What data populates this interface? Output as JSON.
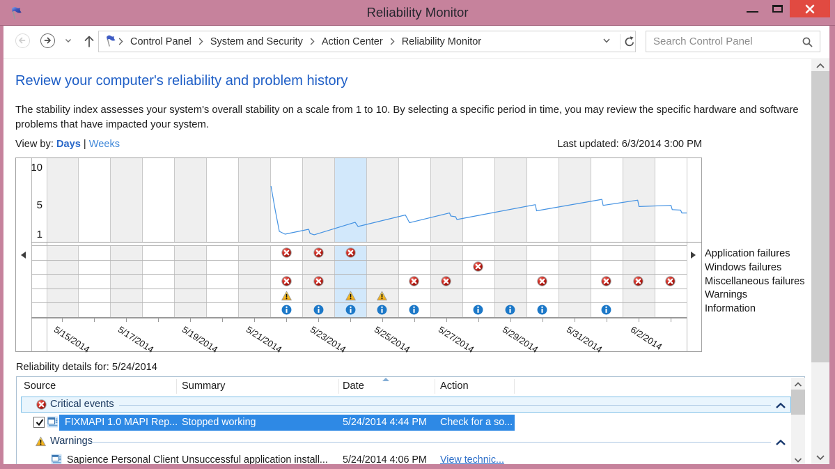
{
  "window": {
    "title": "Reliability Monitor"
  },
  "toolbar": {
    "breadcrumb": [
      "Control Panel",
      "System and Security",
      "Action Center",
      "Reliability Monitor"
    ],
    "search_placeholder": "Search Control Panel"
  },
  "page": {
    "heading": "Review your computer's reliability and problem history",
    "intro_line1": "The stability index assesses your system's overall stability on a scale from 1 to 10. By selecting a specific period in time, you may review the specific hardware and software",
    "intro_line2": "problems that have impacted your system.",
    "view_by_label": "View by:",
    "view_by_days": "Days",
    "view_by_separator": "|",
    "view_by_weeks": "Weeks",
    "last_updated": "Last updated: 6/3/2014 3:00 PM",
    "details_label": "Reliability details for: 5/24/2014"
  },
  "chart_data": {
    "type": "line",
    "title": "stability index history with daily event grid",
    "ylabel": "stability index",
    "y_ticks": [
      10,
      5,
      1
    ],
    "ylim": [
      0,
      11.2
    ],
    "days": [
      "5/15/2014",
      "5/16/2014",
      "5/17/2014",
      "5/18/2014",
      "5/19/2014",
      "5/20/2014",
      "5/21/2014",
      "5/22/2014",
      "5/23/2014",
      "5/24/2014",
      "5/25/2014",
      "5/26/2014",
      "5/27/2014",
      "5/28/2014",
      "5/29/2014",
      "5/30/2014",
      "5/31/2014",
      "6/1/2014",
      "6/2/2014",
      "6/3/2014"
    ],
    "x_tick_labels": [
      "5/15/2014",
      "5/17/2014",
      "5/19/2014",
      "5/21/2014",
      "5/23/2014",
      "5/25/2014",
      "5/27/2014",
      "5/29/2014",
      "5/31/2014",
      "6/2/2014"
    ],
    "selected_day": "5/24/2014",
    "selected_day_index": 10,
    "stability_line": [
      [
        7.01,
        7.48
      ],
      [
        7.14,
        4.3
      ],
      [
        7.27,
        1.4
      ],
      [
        7.45,
        1.03
      ],
      [
        8.19,
        1.68
      ],
      [
        8.23,
        1.12
      ],
      [
        8.36,
        0.94
      ],
      [
        9.64,
        2.62
      ],
      [
        9.73,
        2.06
      ],
      [
        11.21,
        3.6
      ],
      [
        11.34,
        2.56
      ],
      [
        12.59,
        3.87
      ],
      [
        12.63,
        3.46
      ],
      [
        12.78,
        3.36
      ],
      [
        12.82,
        2.99
      ],
      [
        15.27,
        4.98
      ],
      [
        15.31,
        4.16
      ],
      [
        17.35,
        5.69
      ],
      [
        17.39,
        4.89
      ],
      [
        18.47,
        5.59
      ],
      [
        18.51,
        4.73
      ],
      [
        19.51,
        4.89
      ],
      [
        19.55,
        4.32
      ],
      [
        19.81,
        4.25
      ],
      [
        19.85,
        3.87
      ],
      [
        20.0,
        3.87
      ]
    ],
    "event_rows": [
      {
        "label": "Application failures",
        "icon": "error",
        "days": [
          8,
          9,
          10
        ]
      },
      {
        "label": "Windows failures",
        "icon": "error",
        "days": [
          14
        ]
      },
      {
        "label": "Miscellaneous failures",
        "icon": "error",
        "days": [
          8,
          9,
          12,
          13,
          16,
          18,
          19,
          20
        ]
      },
      {
        "label": "Warnings",
        "icon": "warning",
        "days": [
          8,
          10,
          11
        ]
      },
      {
        "label": "Information",
        "icon": "info",
        "days": [
          8,
          9,
          10,
          11,
          12,
          14,
          15,
          16,
          18
        ]
      }
    ]
  },
  "table": {
    "columns": [
      "Source",
      "Summary",
      "Date",
      "Action"
    ],
    "sorted_column": "Date",
    "groups_and_rows": [
      {
        "type": "group",
        "icon": "error",
        "label": "Critical events",
        "selected": true
      },
      {
        "type": "row",
        "checked": true,
        "selected": true,
        "source": "FIXMAPI 1.0 MAPI Rep...",
        "summary": "Stopped working",
        "date": "5/24/2014 4:44 PM",
        "action": "Check for a so..."
      },
      {
        "type": "group",
        "icon": "warning",
        "label": "Warnings",
        "selected": false
      },
      {
        "type": "row",
        "checked": false,
        "selected": false,
        "source": "Sapience Personal Client",
        "summary": "Unsuccessful application install...",
        "date": "5/24/2014 4:06 PM",
        "action": "View technic..."
      }
    ]
  }
}
